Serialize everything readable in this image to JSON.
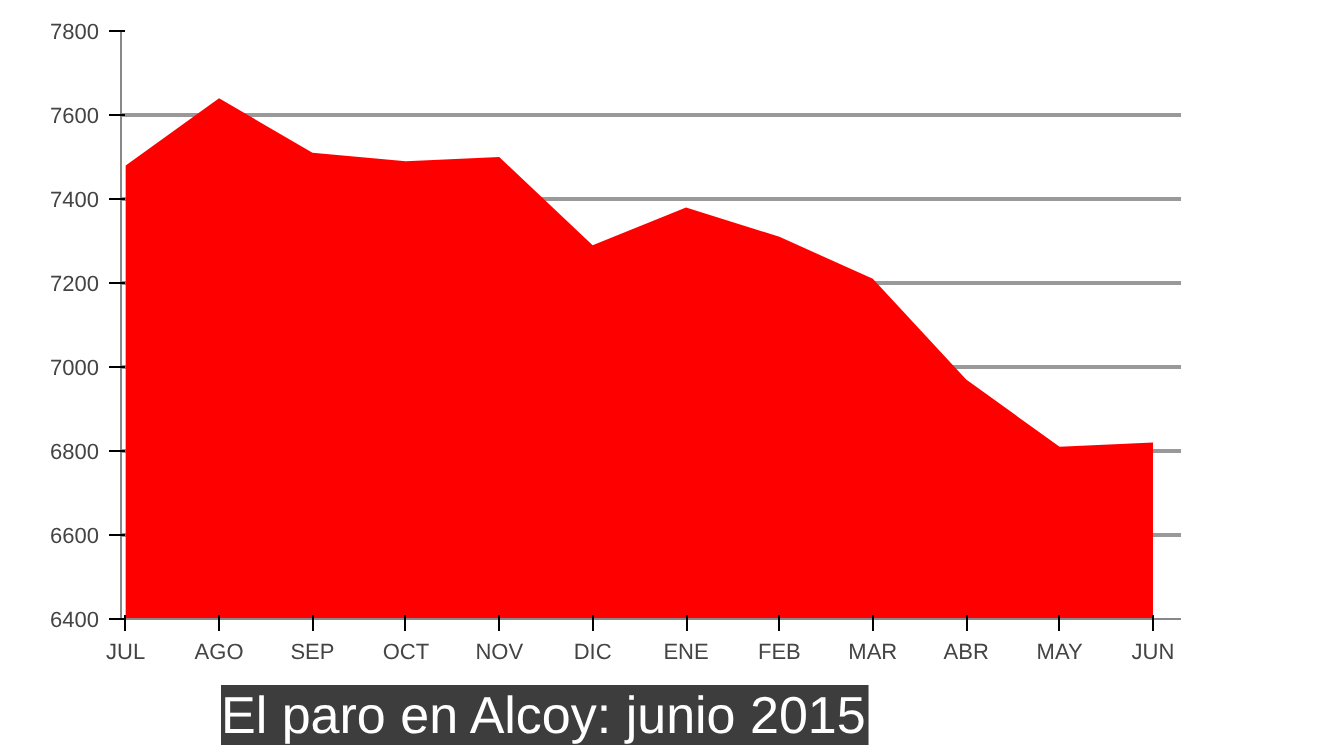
{
  "chart_data": {
    "type": "area",
    "title": "El paro en Alcoy: junio 2015",
    "categories": [
      "JUL",
      "AGO",
      "SEP",
      "OCT",
      "NOV",
      "DIC",
      "ENE",
      "FEB",
      "MAR",
      "ABR",
      "MAY",
      "JUN"
    ],
    "values": [
      7480,
      7640,
      7510,
      7490,
      7500,
      7290,
      7380,
      7310,
      7210,
      6970,
      6810,
      6820
    ],
    "color": "#ff0000",
    "ylim": [
      6400,
      7800
    ],
    "yticks": [
      6400,
      6600,
      6800,
      7000,
      7200,
      7400,
      7600,
      7800
    ],
    "grid": "y"
  }
}
